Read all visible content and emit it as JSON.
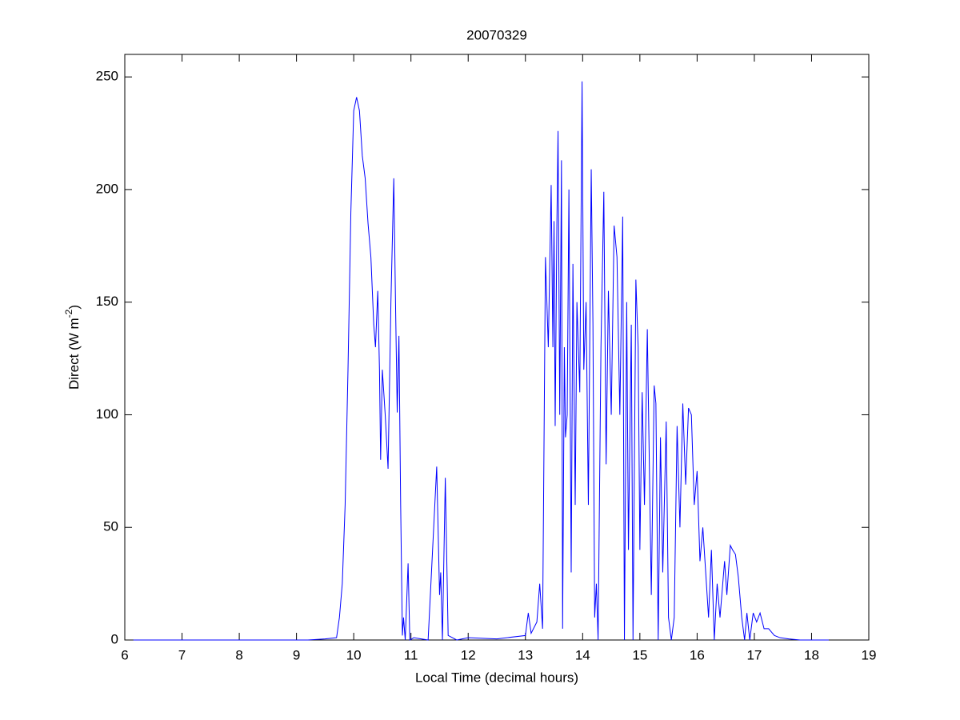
{
  "chart_data": {
    "type": "line",
    "title": "20070329",
    "x_label": "Local Time (decimal hours)",
    "y_label_parts": [
      "Direct (W m",
      "-2",
      ")"
    ],
    "xlim": [
      6,
      19
    ],
    "xticks": [
      6,
      7,
      8,
      9,
      10,
      11,
      12,
      13,
      14,
      15,
      16,
      17,
      18,
      19
    ],
    "ylim": [
      0,
      260
    ],
    "yticks": [
      0,
      50,
      100,
      150,
      200,
      250
    ],
    "grid": false,
    "series": [
      {
        "color": "#0000ff",
        "x": [
          6.15,
          7,
          8,
          9,
          9.2,
          9.5,
          9.7,
          9.75,
          9.8,
          9.85,
          9.9,
          9.95,
          10.0,
          10.05,
          10.1,
          10.15,
          10.2,
          10.25,
          10.3,
          10.35,
          10.38,
          10.42,
          10.45,
          10.47,
          10.5,
          10.55,
          10.6,
          10.65,
          10.7,
          10.73,
          10.76,
          10.79,
          10.82,
          10.85,
          10.87,
          10.9,
          10.95,
          10.98,
          11.05,
          11.3,
          11.45,
          11.5,
          11.52,
          11.55,
          11.6,
          11.65,
          11.8,
          12,
          12.5,
          13,
          13.05,
          13.1,
          13.2,
          13.25,
          13.3,
          13.35,
          13.4,
          13.45,
          13.48,
          13.5,
          13.52,
          13.55,
          13.57,
          13.6,
          13.63,
          13.65,
          13.68,
          13.7,
          13.73,
          13.76,
          13.8,
          13.83,
          13.87,
          13.9,
          13.95,
          13.99,
          14.02,
          14.06,
          14.1,
          14.15,
          14.18,
          14.21,
          14.24,
          14.27,
          14.32,
          14.37,
          14.41,
          14.45,
          14.5,
          14.55,
          14.6,
          14.65,
          14.7,
          14.73,
          14.77,
          14.8,
          14.85,
          14.88,
          14.93,
          14.97,
          15.0,
          15.04,
          15.08,
          15.13,
          15.17,
          15.2,
          15.25,
          15.28,
          15.32,
          15.36,
          15.4,
          15.46,
          15.5,
          15.55,
          15.6,
          15.65,
          15.7,
          15.75,
          15.8,
          15.85,
          15.9,
          15.95,
          16.0,
          16.05,
          16.1,
          16.15,
          16.2,
          16.25,
          16.3,
          16.35,
          16.4,
          16.48,
          16.52,
          16.58,
          16.62,
          16.67,
          16.72,
          16.78,
          16.83,
          16.87,
          16.92,
          16.98,
          17.04,
          17.1,
          17.17,
          17.25,
          17.35,
          17.45,
          17.6,
          17.8,
          18.1,
          18.3
        ],
        "values": [
          0,
          0,
          0,
          0,
          0,
          0.5,
          1,
          10,
          25,
          60,
          120,
          190,
          235,
          241,
          235,
          215,
          205,
          185,
          170,
          140,
          130,
          155,
          120,
          80,
          120,
          100,
          76,
          150,
          205,
          150,
          101,
          135,
          60,
          2,
          10,
          0,
          34,
          0,
          1,
          0,
          77,
          20,
          30,
          0,
          72,
          2,
          0,
          1,
          0.5,
          2,
          12,
          3,
          8,
          25,
          5,
          170,
          130,
          202,
          130,
          186,
          95,
          185,
          226,
          100,
          213,
          5,
          130,
          90,
          100,
          200,
          30,
          167,
          60,
          150,
          110,
          248,
          120,
          150,
          60,
          209,
          140,
          10,
          25,
          0,
          130,
          199,
          78,
          155,
          100,
          184,
          170,
          100,
          188,
          0,
          150,
          40,
          140,
          0,
          160,
          130,
          40,
          110,
          60,
          138,
          70,
          20,
          113,
          105,
          0,
          90,
          30,
          97,
          10,
          0,
          10,
          95,
          50,
          105,
          69,
          103,
          100,
          60,
          75,
          35,
          50,
          30,
          10,
          40,
          0,
          25,
          10,
          35,
          20,
          42,
          40,
          38,
          28,
          10,
          0,
          12,
          0,
          12,
          8,
          12,
          5,
          5,
          2,
          1,
          0.5,
          0,
          0,
          0
        ]
      }
    ]
  }
}
